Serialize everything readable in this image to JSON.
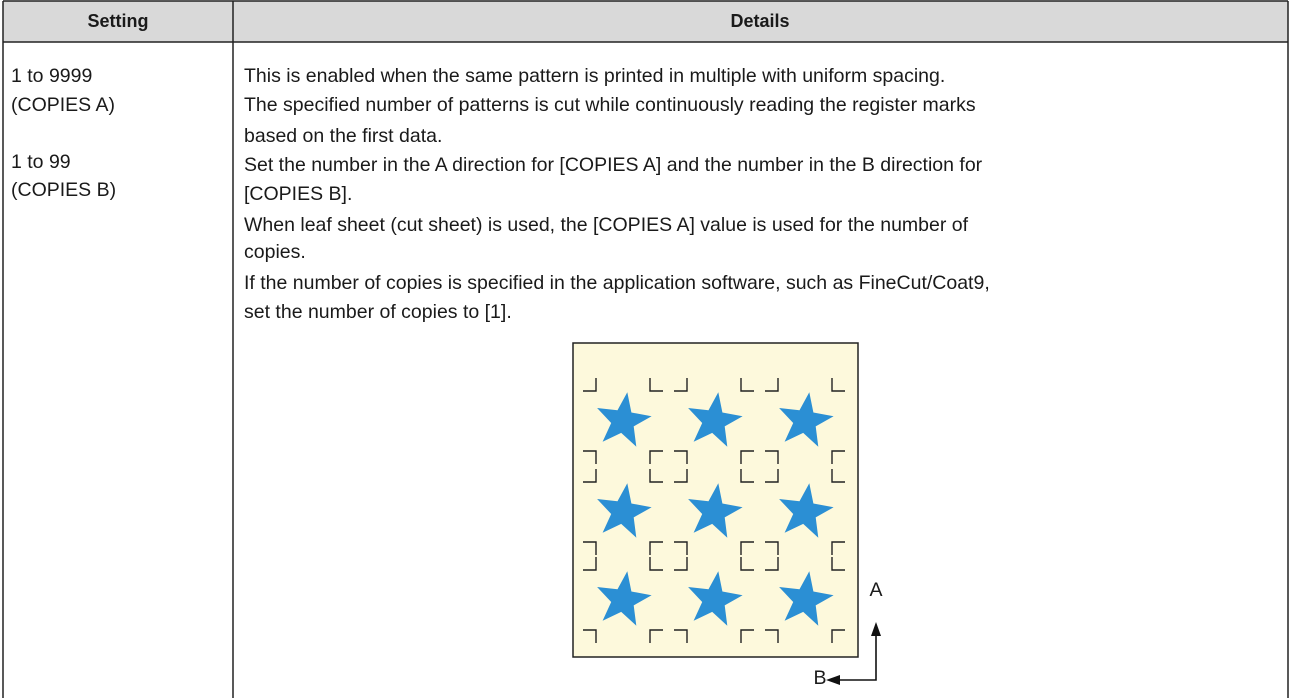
{
  "table": {
    "headers": [
      "Setting",
      "Details"
    ],
    "rows": [
      [
        [
          "1 to 9999",
          "(COPIES A)",
          "1 to 99",
          "(COPIES B)"
        ],
        [
          "This is enabled when the same pattern is printed in multiple with uniform spacing.",
          "The specified number of patterns is cut while continuously reading the register marks",
          "based on the first data.",
          "Set the number in the A direction for [COPIES A] and the number in the B direction for",
          "[COPIES B].",
          "When leaf sheet (cut sheet) is used, the [COPIES A] value is used for the number of",
          "copies.",
          "If the number of copies is specified in the application software, such as FineCut/Coat9,",
          "set the number of copies to [1]."
        ]
      ]
    ]
  },
  "figure": {
    "labels": [
      "A",
      "B"
    ]
  }
}
